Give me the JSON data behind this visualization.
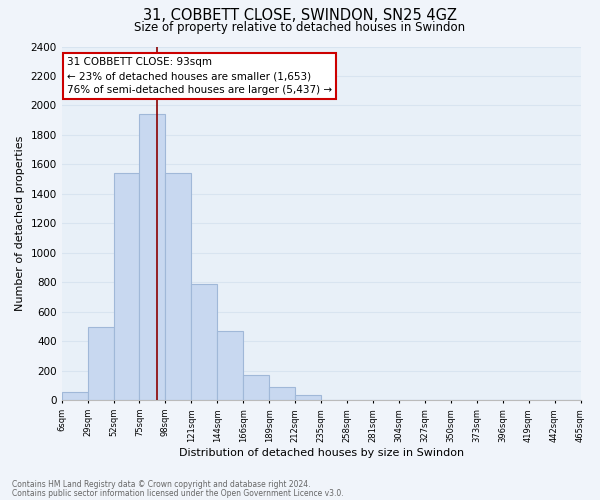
{
  "title": "31, COBBETT CLOSE, SWINDON, SN25 4GZ",
  "subtitle": "Size of property relative to detached houses in Swindon",
  "xlabel": "Distribution of detached houses by size in Swindon",
  "ylabel": "Number of detached properties",
  "bar_color": "#c8d8f0",
  "bar_edge_color": "#a0b8d8",
  "bin_labels": [
    "6sqm",
    "29sqm",
    "52sqm",
    "75sqm",
    "98sqm",
    "121sqm",
    "144sqm",
    "166sqm",
    "189sqm",
    "212sqm",
    "235sqm",
    "258sqm",
    "281sqm",
    "304sqm",
    "327sqm",
    "350sqm",
    "373sqm",
    "396sqm",
    "419sqm",
    "442sqm",
    "465sqm"
  ],
  "bar_heights": [
    55,
    500,
    1540,
    1940,
    1540,
    790,
    470,
    175,
    90,
    35,
    0,
    0,
    0,
    0,
    0,
    0,
    0,
    0,
    0,
    0
  ],
  "ylim": [
    0,
    2400
  ],
  "yticks": [
    0,
    200,
    400,
    600,
    800,
    1000,
    1200,
    1400,
    1600,
    1800,
    2000,
    2200,
    2400
  ],
  "property_label": "31 COBBETT CLOSE: 93sqm",
  "annotation_line1": "← 23% of detached houses are smaller (1,653)",
  "annotation_line2": "76% of semi-detached houses are larger (5,437) →",
  "annotation_box_color": "#ffffff",
  "annotation_box_edge": "#cc0000",
  "red_line_x": 3.68,
  "footer_line1": "Contains HM Land Registry data © Crown copyright and database right 2024.",
  "footer_line2": "Contains public sector information licensed under the Open Government Licence v3.0.",
  "background_color": "#f0f4fa",
  "grid_color": "#d8e4f0",
  "plot_bg_color": "#e8f0f8"
}
